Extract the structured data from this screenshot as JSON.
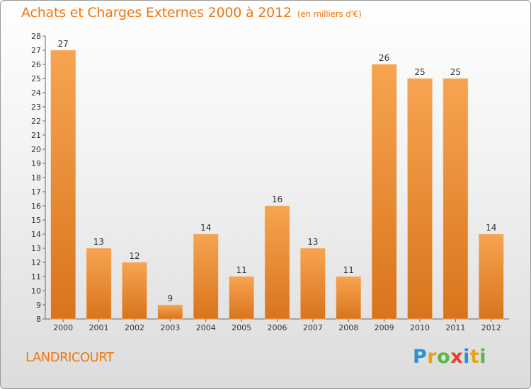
{
  "chart_data": {
    "type": "bar",
    "title": "Achats et Charges Externes 2000 à 2012",
    "subtitle": "(en milliers d'€)",
    "categories": [
      "2000",
      "2001",
      "2002",
      "2003",
      "2004",
      "2005",
      "2006",
      "2007",
      "2008",
      "2009",
      "2010",
      "2011",
      "2012"
    ],
    "values": [
      27,
      13,
      12,
      9,
      14,
      11,
      16,
      13,
      11,
      26,
      25,
      25,
      14
    ],
    "ylim": [
      8,
      28
    ],
    "yticks": [
      8,
      9,
      10,
      11,
      12,
      13,
      14,
      15,
      16,
      17,
      18,
      19,
      20,
      21,
      22,
      23,
      24,
      25,
      26,
      27,
      28
    ],
    "grid": false,
    "bar_color_top": "#f7a450",
    "bar_color_bottom": "#d9741c"
  },
  "footer": {
    "commune": "LANDRICOURT",
    "logo_letters": [
      {
        "ch": "P",
        "color": "#2b8fd6"
      },
      {
        "ch": "r",
        "color": "#e8a21a"
      },
      {
        "ch": "o",
        "color": "#58b947"
      },
      {
        "ch": "x",
        "color": "#e8412c"
      },
      {
        "ch": "i",
        "color": "#2b8fd6"
      },
      {
        "ch": "t",
        "color": "#e8a21a"
      },
      {
        "ch": "i",
        "color": "#58b947"
      }
    ]
  },
  "accent_color": "#ee7711"
}
